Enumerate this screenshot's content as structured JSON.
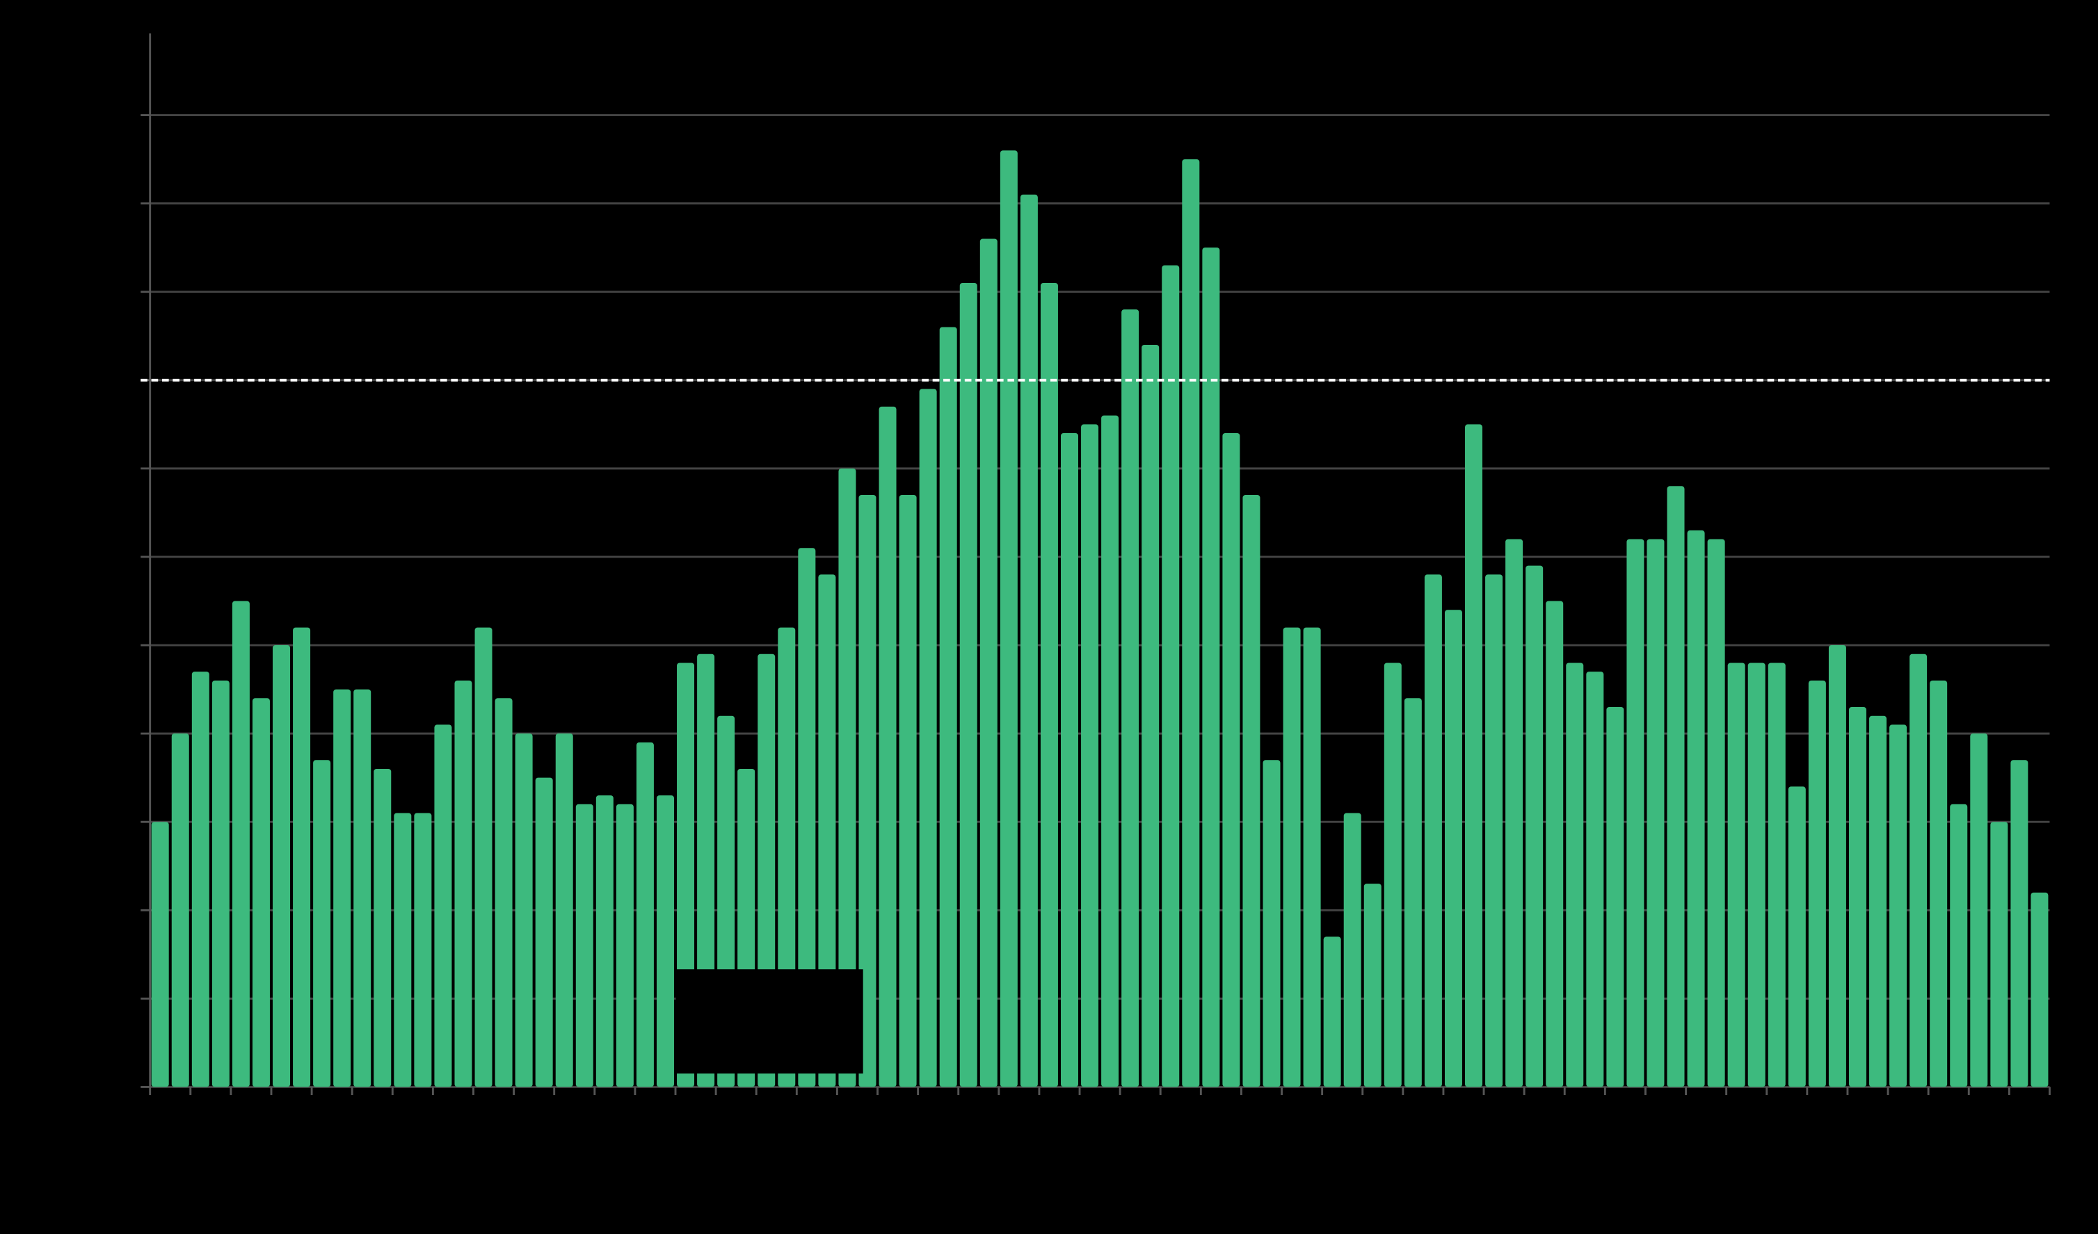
{
  "chart_data": {
    "type": "bar",
    "values": [
      3.0,
      4.0,
      4.7,
      4.6,
      5.5,
      4.4,
      5.0,
      5.2,
      3.7,
      4.5,
      4.5,
      3.6,
      3.1,
      3.1,
      4.1,
      4.6,
      5.2,
      4.4,
      4.0,
      3.5,
      4.0,
      3.2,
      3.3,
      3.2,
      3.9,
      3.3,
      4.8,
      4.9,
      4.2,
      3.6,
      4.9,
      5.2,
      6.1,
      5.8,
      7.0,
      6.7,
      7.7,
      6.7,
      7.9,
      8.6,
      9.1,
      9.6,
      10.6,
      10.1,
      9.1,
      7.4,
      7.5,
      7.6,
      8.8,
      8.4,
      9.3,
      10.5,
      9.5,
      7.4,
      6.7,
      3.7,
      5.2,
      5.2,
      1.7,
      3.1,
      2.3,
      4.8,
      4.4,
      5.8,
      5.4,
      7.5,
      5.8,
      6.2,
      5.9,
      5.5,
      4.8,
      4.7,
      4.3,
      6.2,
      6.2,
      6.8,
      6.3,
      6.2,
      4.8,
      4.8,
      4.8,
      3.4,
      4.6,
      5.0,
      4.3,
      4.2,
      4.1,
      4.9,
      4.6,
      3.2,
      4.0,
      3.0,
      3.7,
      2.2
    ],
    "color": "#3dba7e",
    "ylim": [
      0,
      12
    ],
    "yticks": [
      0,
      1,
      2,
      3,
      4,
      5,
      6,
      7,
      8,
      9,
      10,
      11
    ],
    "grid": true,
    "reference_line": 8
  }
}
